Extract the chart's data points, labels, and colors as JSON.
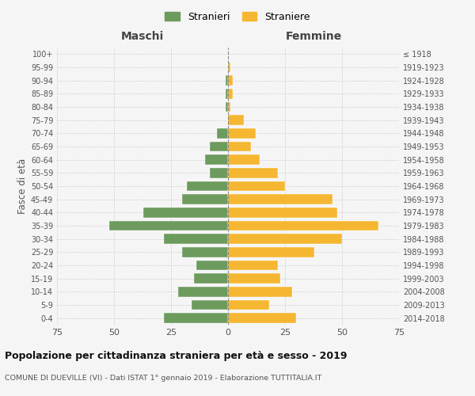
{
  "age_groups": [
    "0-4",
    "5-9",
    "10-14",
    "15-19",
    "20-24",
    "25-29",
    "30-34",
    "35-39",
    "40-44",
    "45-49",
    "50-54",
    "55-59",
    "60-64",
    "65-69",
    "70-74",
    "75-79",
    "80-84",
    "85-89",
    "90-94",
    "95-99",
    "100+"
  ],
  "birth_years": [
    "2014-2018",
    "2009-2013",
    "2004-2008",
    "1999-2003",
    "1994-1998",
    "1989-1993",
    "1984-1988",
    "1979-1983",
    "1974-1978",
    "1969-1973",
    "1964-1968",
    "1959-1963",
    "1954-1958",
    "1949-1953",
    "1944-1948",
    "1939-1943",
    "1934-1938",
    "1929-1933",
    "1924-1928",
    "1919-1923",
    "≤ 1918"
  ],
  "maschi": [
    28,
    16,
    22,
    15,
    14,
    20,
    28,
    52,
    37,
    20,
    18,
    8,
    10,
    8,
    5,
    0,
    1,
    1,
    1,
    0,
    0
  ],
  "femmine": [
    30,
    18,
    28,
    23,
    22,
    38,
    50,
    66,
    48,
    46,
    25,
    22,
    14,
    10,
    12,
    7,
    1,
    2,
    2,
    1,
    0
  ],
  "maschi_color": "#6d9b5e",
  "femmine_color": "#f5b731",
  "background_color": "#f5f5f5",
  "grid_color": "#cccccc",
  "title": "Popolazione per cittadinanza straniera per età e sesso - 2019",
  "subtitle": "COMUNE DI DUEVILLE (VI) - Dati ISTAT 1° gennaio 2019 - Elaborazione TUTTITALIA.IT",
  "xlabel_maschi": "Maschi",
  "xlabel_femmine": "Femmine",
  "ylabel_left": "Fasce di età",
  "legend_stranieri": "Stranieri",
  "legend_straniere": "Straniere",
  "xlim": 75
}
